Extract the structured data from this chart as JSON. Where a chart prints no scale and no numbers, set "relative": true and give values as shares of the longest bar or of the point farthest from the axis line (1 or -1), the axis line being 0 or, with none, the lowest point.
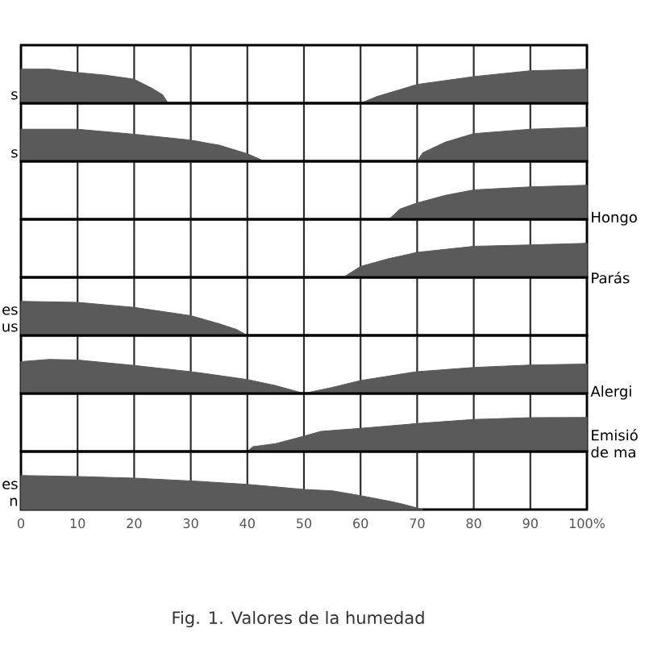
{
  "chart_data": [
    {
      "type": "area",
      "relative": true,
      "ylabel": "s",
      "x": [
        0,
        5,
        10,
        15,
        20,
        23,
        25,
        26,
        60,
        63,
        70,
        80,
        90,
        100
      ],
      "values": [
        1,
        1,
        0.9,
        0.82,
        0.7,
        0.45,
        0.25,
        0,
        0,
        0.2,
        0.55,
        0.78,
        0.95,
        1
      ],
      "color": "#5a5a5a",
      "xlim": [
        0,
        100
      ],
      "xticks": [
        0,
        10,
        20,
        30,
        40,
        50,
        60,
        70,
        80,
        90,
        100
      ],
      "grid": "x",
      "tick_labels": false
    },
    {
      "type": "area",
      "relative": true,
      "ylabel": "s",
      "x": [
        0,
        10,
        20,
        30,
        35,
        40,
        43,
        70,
        71,
        75,
        80,
        90,
        100
      ],
      "values": [
        0.94,
        0.94,
        0.79,
        0.62,
        0.47,
        0.22,
        0,
        0,
        0.25,
        0.56,
        0.81,
        0.94,
        1
      ],
      "color": "#5a5a5a",
      "xlim": [
        0,
        100
      ],
      "xticks": [
        0,
        10,
        20,
        30,
        40,
        50,
        60,
        70,
        80,
        90,
        100
      ],
      "grid": "x",
      "tick_labels": false
    },
    {
      "type": "area",
      "relative": true,
      "y2label": "Hongo",
      "x": [
        0,
        65,
        67,
        70,
        75,
        80,
        90,
        100
      ],
      "values": [
        0,
        0,
        0.3,
        0.48,
        0.7,
        0.86,
        0.95,
        1
      ],
      "color": "#5a5a5a",
      "xlim": [
        0,
        100
      ],
      "xticks": [
        0,
        10,
        20,
        30,
        40,
        50,
        60,
        70,
        80,
        90,
        100
      ],
      "grid": "x",
      "tick_labels": false
    },
    {
      "type": "area",
      "relative": true,
      "y2label": "Parás",
      "x": [
        0,
        57,
        60,
        65,
        70,
        80,
        90,
        100
      ],
      "values": [
        0,
        0,
        0.32,
        0.55,
        0.73,
        0.91,
        0.95,
        1
      ],
      "color": "#5a5a5a",
      "xlim": [
        0,
        100
      ],
      "xticks": [
        0,
        10,
        20,
        30,
        40,
        50,
        60,
        70,
        80,
        90,
        100
      ],
      "grid": "x",
      "tick_labels": false
    },
    {
      "type": "area",
      "relative": true,
      "ylabel": "es us",
      "x": [
        0,
        10,
        20,
        30,
        35,
        38,
        40
      ],
      "values": [
        1,
        0.97,
        0.82,
        0.58,
        0.34,
        0.18,
        0
      ],
      "color": "#5a5a5a",
      "xlim": [
        0,
        100
      ],
      "xticks": [
        0,
        10,
        20,
        30,
        40,
        50,
        60,
        70,
        80,
        90,
        100
      ],
      "grid": "x",
      "tick_labels": false
    },
    {
      "type": "area",
      "relative": true,
      "y2label": "Alergi",
      "x": [
        0,
        5,
        10,
        20,
        30,
        40,
        45,
        50,
        55,
        60,
        70,
        80,
        90,
        100
      ],
      "values": [
        0.93,
        1,
        0.98,
        0.82,
        0.64,
        0.41,
        0.23,
        0,
        0.18,
        0.38,
        0.64,
        0.76,
        0.83,
        0.86
      ],
      "color": "#5a5a5a",
      "xlim": [
        0,
        100
      ],
      "xticks": [
        0,
        10,
        20,
        30,
        40,
        50,
        60,
        70,
        80,
        90,
        100
      ],
      "grid": "x",
      "tick_labels": false
    },
    {
      "type": "area",
      "relative": true,
      "y2label": "Emisió de ma",
      "x": [
        0,
        40,
        41,
        45,
        50,
        53,
        60,
        70,
        80,
        90,
        100
      ],
      "values": [
        0,
        0,
        0.14,
        0.23,
        0.45,
        0.59,
        0.68,
        0.82,
        0.94,
        0.99,
        1
      ],
      "color": "#5a5a5a",
      "xlim": [
        0,
        100
      ],
      "xticks": [
        0,
        10,
        20,
        30,
        40,
        50,
        60,
        70,
        80,
        90,
        100
      ],
      "grid": "x",
      "tick_labels": false
    },
    {
      "type": "area",
      "relative": true,
      "ylabel": "es n",
      "x": [
        0,
        10,
        20,
        30,
        40,
        50,
        55,
        60,
        65,
        67,
        71
      ],
      "values": [
        1,
        0.97,
        0.92,
        0.84,
        0.74,
        0.59,
        0.55,
        0.41,
        0.25,
        0.18,
        0
      ],
      "color": "#5a5a5a",
      "xlim": [
        0,
        100
      ],
      "xticks": [
        0,
        10,
        20,
        30,
        40,
        50,
        60,
        70,
        80,
        90,
        {
          "value": 100,
          "label": "100%"
        }
      ],
      "grid": "x",
      "tick_labels": "x",
      "annotations": [
        "Fig. 1. Valores de la humedad"
      ]
    }
  ]
}
